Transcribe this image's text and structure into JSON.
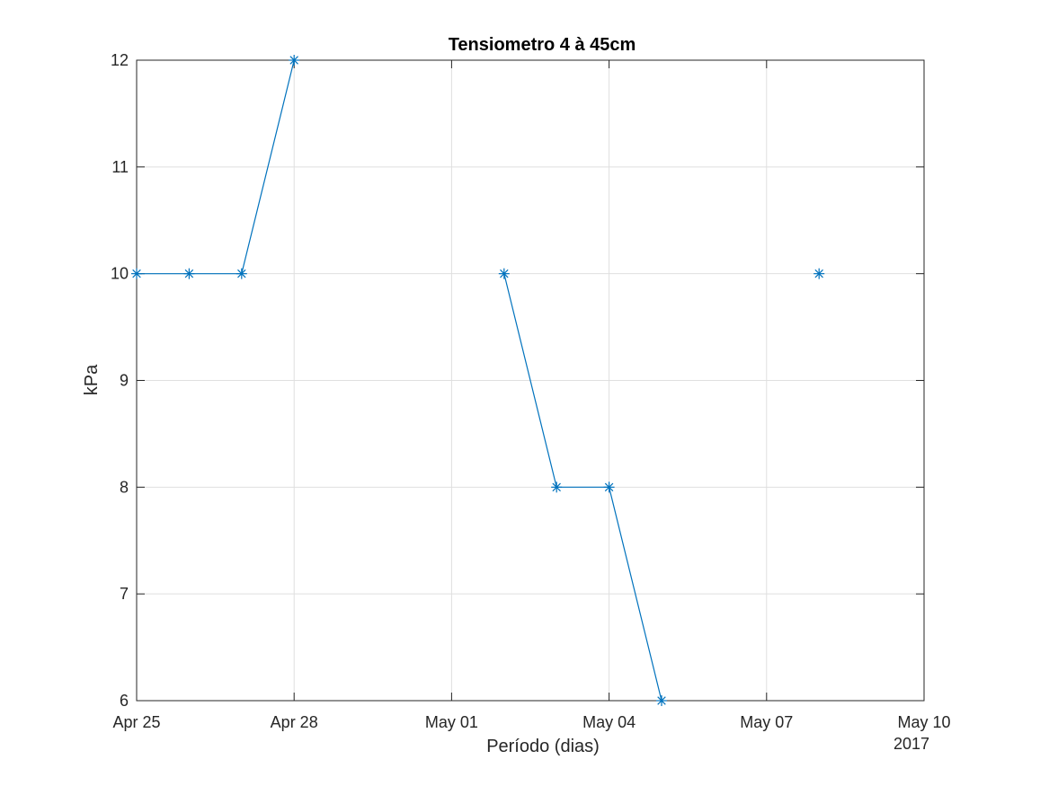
{
  "chart_data": {
    "type": "line",
    "title": "Tensiometro 4 à 45cm",
    "xlabel": "Período (dias)",
    "ylabel": "kPa",
    "x_secondary_label": "2017",
    "xlim": [
      "2017-04-25",
      "2017-05-10"
    ],
    "ylim": [
      6,
      12
    ],
    "x_ticks": [
      {
        "date": "2017-04-25",
        "label": "Apr 25"
      },
      {
        "date": "2017-04-28",
        "label": "Apr 28"
      },
      {
        "date": "2017-05-01",
        "label": "May 01"
      },
      {
        "date": "2017-05-04",
        "label": "May 04"
      },
      {
        "date": "2017-05-07",
        "label": "May 07"
      },
      {
        "date": "2017-05-10",
        "label": "May 10"
      }
    ],
    "y_ticks": [
      6,
      7,
      8,
      9,
      10,
      11,
      12
    ],
    "grid": true,
    "marker": "asterisk",
    "series": [
      {
        "color": "#0072bd",
        "points": [
          {
            "x": "2017-04-25",
            "y": 10
          },
          {
            "x": "2017-04-26",
            "y": 10
          },
          {
            "x": "2017-04-27",
            "y": 10
          },
          {
            "x": "2017-04-28",
            "y": 12
          },
          {
            "x": "2017-04-29",
            "y": null
          },
          {
            "x": "2017-04-30",
            "y": null
          },
          {
            "x": "2017-05-01",
            "y": null
          },
          {
            "x": "2017-05-02",
            "y": 10
          },
          {
            "x": "2017-05-03",
            "y": 8
          },
          {
            "x": "2017-05-04",
            "y": 8
          },
          {
            "x": "2017-05-05",
            "y": 6
          },
          {
            "x": "2017-05-06",
            "y": null
          },
          {
            "x": "2017-05-07",
            "y": null
          },
          {
            "x": "2017-05-08",
            "y": 10
          }
        ]
      }
    ]
  }
}
